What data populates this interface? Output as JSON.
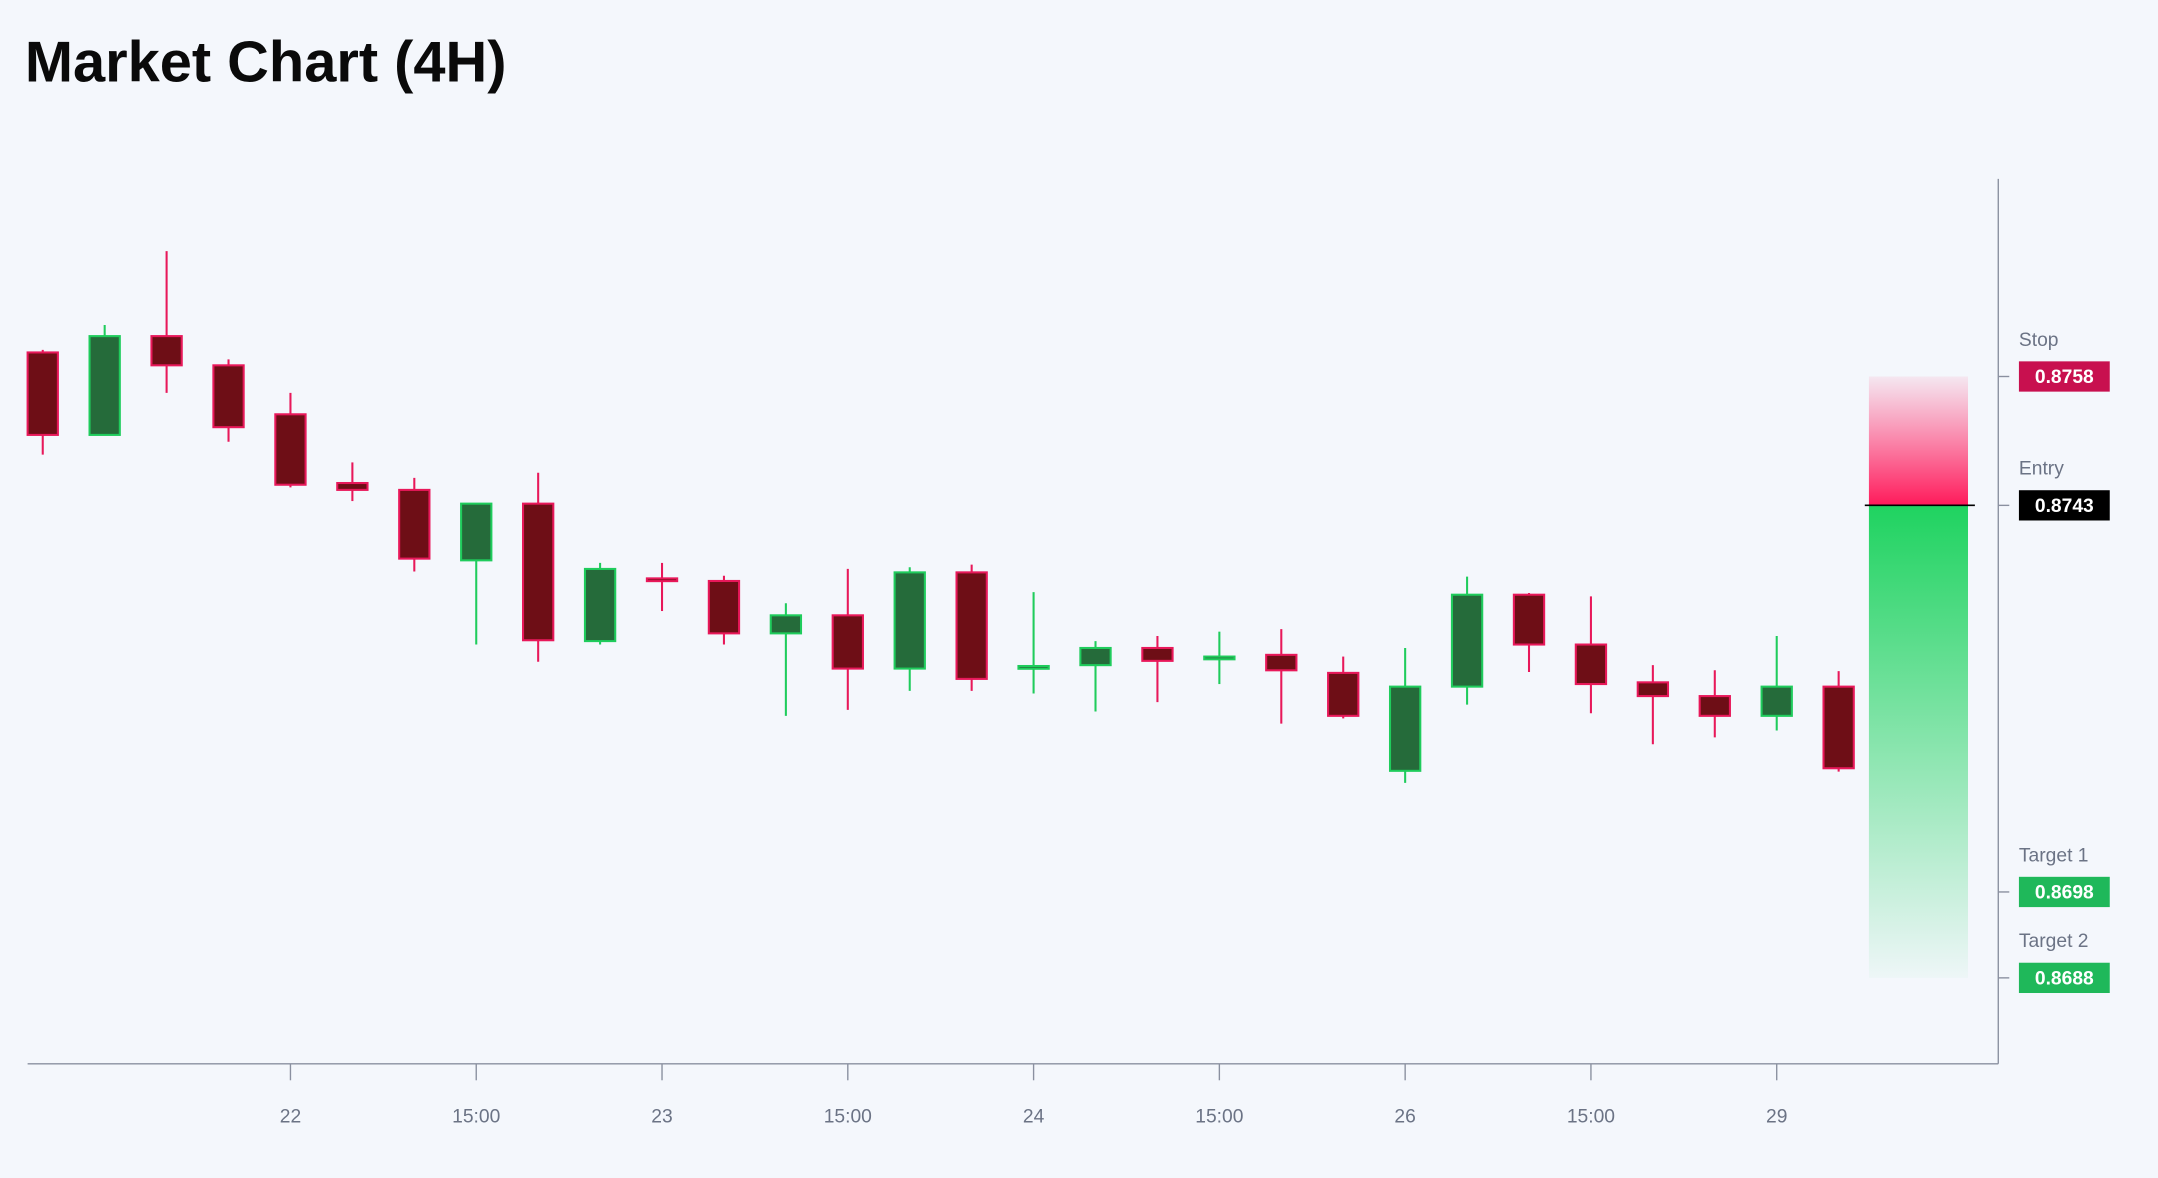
{
  "chart_data": {
    "type": "candlestick",
    "title": "Market Chart (4H)",
    "categories": [
      null,
      null,
      null,
      null,
      "22",
      null,
      null,
      "15:00",
      null,
      null,
      "23",
      null,
      null,
      "15:00",
      null,
      null,
      "24",
      null,
      null,
      "15:00",
      null,
      null,
      "26",
      null,
      null,
      "15:00",
      null,
      null,
      "29",
      null
    ],
    "open": [
      0.87608,
      0.87512,
      0.87627,
      0.87593,
      0.87536,
      0.87456,
      0.87448,
      0.87366,
      0.87432,
      0.87272,
      0.87345,
      0.87342,
      0.87281,
      0.87302,
      0.8724,
      0.87352,
      0.87241,
      0.87244,
      0.87264,
      0.87251,
      0.87256,
      0.87235,
      0.87121,
      0.87219,
      0.87326,
      0.87268,
      0.87224,
      0.87208,
      0.87185,
      0.87219
    ],
    "high": [
      0.87611,
      0.8764,
      0.87726,
      0.876,
      0.87561,
      0.8748,
      0.87462,
      0.87432,
      0.87468,
      0.87363,
      0.87363,
      0.87348,
      0.87316,
      0.87356,
      0.87358,
      0.87361,
      0.87329,
      0.87272,
      0.87278,
      0.87283,
      0.87286,
      0.87254,
      0.87264,
      0.87347,
      0.87328,
      0.87324,
      0.87244,
      0.87238,
      0.87278,
      0.87237
    ],
    "low": [
      0.87489,
      0.87512,
      0.87561,
      0.87504,
      0.87451,
      0.87435,
      0.87353,
      0.87268,
      0.87248,
      0.87268,
      0.87307,
      0.87268,
      0.87185,
      0.87192,
      0.87214,
      0.87214,
      0.87211,
      0.8719,
      0.87201,
      0.87222,
      0.87176,
      0.87182,
      0.87107,
      0.87198,
      0.87236,
      0.87188,
      0.87152,
      0.8716,
      0.87168,
      0.8712
    ],
    "close": [
      0.87512,
      0.87627,
      0.87593,
      0.87521,
      0.87454,
      0.87448,
      0.87368,
      0.87432,
      0.87273,
      0.87356,
      0.87342,
      0.87281,
      0.87302,
      0.8724,
      0.87352,
      0.87228,
      0.87243,
      0.87264,
      0.87249,
      0.87254,
      0.87238,
      0.87185,
      0.87219,
      0.87326,
      0.87268,
      0.87222,
      0.87208,
      0.87185,
      0.87219,
      0.87124
    ],
    "up_color": "#256b3a",
    "up_edge": "#1fcc5c",
    "down_color": "#6e0e16",
    "down_edge": "#e8185a",
    "ylim": [
      0.8678,
      0.8781
    ],
    "levels": [
      {
        "label": "Stop",
        "value": 0.8758,
        "color": "#c8104f"
      },
      {
        "label": "Entry",
        "value": 0.8743,
        "color": "#000000"
      },
      {
        "label": "Target 1",
        "value": 0.8698,
        "color": "#1fb85a"
      },
      {
        "label": "Target 2",
        "value": 0.8688,
        "color": "#1fb85a"
      }
    ]
  }
}
